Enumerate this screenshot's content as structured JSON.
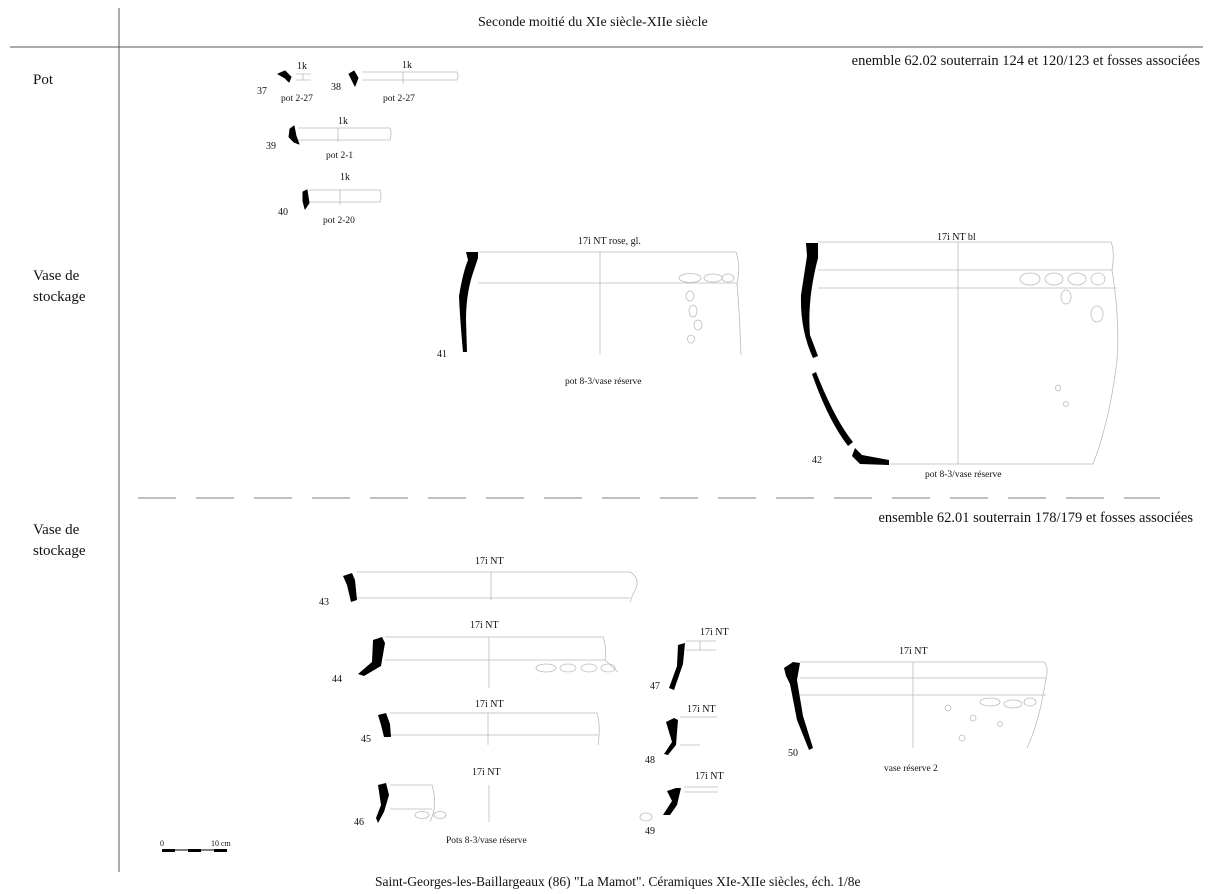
{
  "header": {
    "title": "Seconde moitié du XIe siècle-XIIe siècle"
  },
  "categories": [
    "Pot",
    "Vase de\nstockage",
    "Vase de\nstockage"
  ],
  "ensembles": [
    "enemble 62.02 souterrain 124 et 120/123 et fosses associées",
    "ensemble 62.01 souterrain 178/179 et fosses associées"
  ],
  "sherds": [
    {
      "num": "37",
      "ware": "1k",
      "ref": "pot 2-27"
    },
    {
      "num": "38",
      "ware": "1k",
      "ref": "pot 2-27"
    },
    {
      "num": "39",
      "ware": "1k",
      "ref": "pot 2-1"
    },
    {
      "num": "40",
      "ware": "1k",
      "ref": "pot 2-20"
    },
    {
      "num": "41",
      "ware": "17i NT rose, gl.",
      "ref": "pot 8-3/vase réserve"
    },
    {
      "num": "42",
      "ware": "17i NT bl",
      "ref": "pot 8-3/vase réserve"
    },
    {
      "num": "43",
      "ware": "17i NT"
    },
    {
      "num": "44",
      "ware": "17i NT"
    },
    {
      "num": "45",
      "ware": "17i NT"
    },
    {
      "num": "46",
      "ware": "17i NT",
      "ref": "Pots 8-3/vase réserve"
    },
    {
      "num": "47",
      "ware": "17i NT"
    },
    {
      "num": "48",
      "ware": "17i NT"
    },
    {
      "num": "49",
      "ware": "17i NT"
    },
    {
      "num": "50",
      "ware": "17i NT",
      "ref": "vase réserve 2"
    }
  ],
  "scale": {
    "start": "0",
    "end": "10 cm"
  },
  "caption": "Saint-Georges-les-Baillargeaux (86) \"La Mamot\". Céramiques XIe-XIIe siècles, éch. 1/8e"
}
